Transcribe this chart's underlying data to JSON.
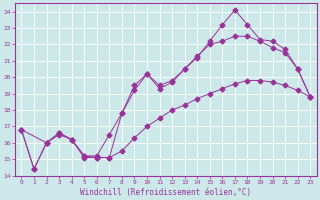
{
  "xlabel": "Windchill (Refroidissement éolien,°C)",
  "bg_color": "#cce8e8",
  "grid_color": "#ffffff",
  "line_color": "#993399",
  "xlim": [
    -0.5,
    23.5
  ],
  "ylim": [
    14,
    24.5
  ],
  "xticks": [
    0,
    1,
    2,
    3,
    4,
    5,
    6,
    7,
    8,
    9,
    10,
    11,
    12,
    13,
    14,
    15,
    16,
    17,
    18,
    19,
    20,
    21,
    22,
    23
  ],
  "yticks": [
    14,
    15,
    16,
    17,
    18,
    19,
    20,
    21,
    22,
    23,
    24
  ],
  "line1_x": [
    0,
    1,
    2,
    3,
    4,
    5,
    6,
    7,
    8,
    9,
    10,
    11,
    12,
    13,
    14,
    15,
    16,
    17,
    18,
    19,
    20,
    21,
    22,
    23
  ],
  "line1_y": [
    16.8,
    14.4,
    16.0,
    16.5,
    16.2,
    15.2,
    15.1,
    15.1,
    17.8,
    19.5,
    20.2,
    19.3,
    19.7,
    20.5,
    21.2,
    22.2,
    23.2,
    24.1,
    23.2,
    22.3,
    22.2,
    21.7,
    20.5,
    18.8
  ],
  "line2_x": [
    0,
    1,
    2,
    3,
    4,
    5,
    6,
    7,
    8,
    9,
    10,
    11,
    12,
    13,
    14,
    15,
    16,
    17,
    18,
    19,
    20,
    21,
    22,
    23
  ],
  "line2_y": [
    16.8,
    14.4,
    16.0,
    16.6,
    16.2,
    15.1,
    15.1,
    15.1,
    15.5,
    16.3,
    17.0,
    17.5,
    18.0,
    18.3,
    18.7,
    19.0,
    19.3,
    19.6,
    19.8,
    19.8,
    19.7,
    19.5,
    19.2,
    18.8
  ],
  "line3_x": [
    0,
    2,
    3,
    4,
    5,
    6,
    7,
    8,
    9,
    10,
    11,
    12,
    13,
    14,
    15,
    16,
    17,
    18,
    19,
    20,
    21,
    22,
    23
  ],
  "line3_y": [
    16.8,
    16.0,
    16.6,
    16.2,
    15.2,
    15.2,
    16.5,
    17.8,
    19.2,
    20.2,
    19.5,
    19.8,
    20.5,
    21.3,
    22.0,
    22.2,
    22.5,
    22.5,
    22.2,
    21.8,
    21.5,
    20.5,
    18.8
  ],
  "marker": "D",
  "markersize": 2.5,
  "linewidth": 0.7,
  "xlabel_fontsize": 5.5,
  "tick_fontsize": 4.5
}
